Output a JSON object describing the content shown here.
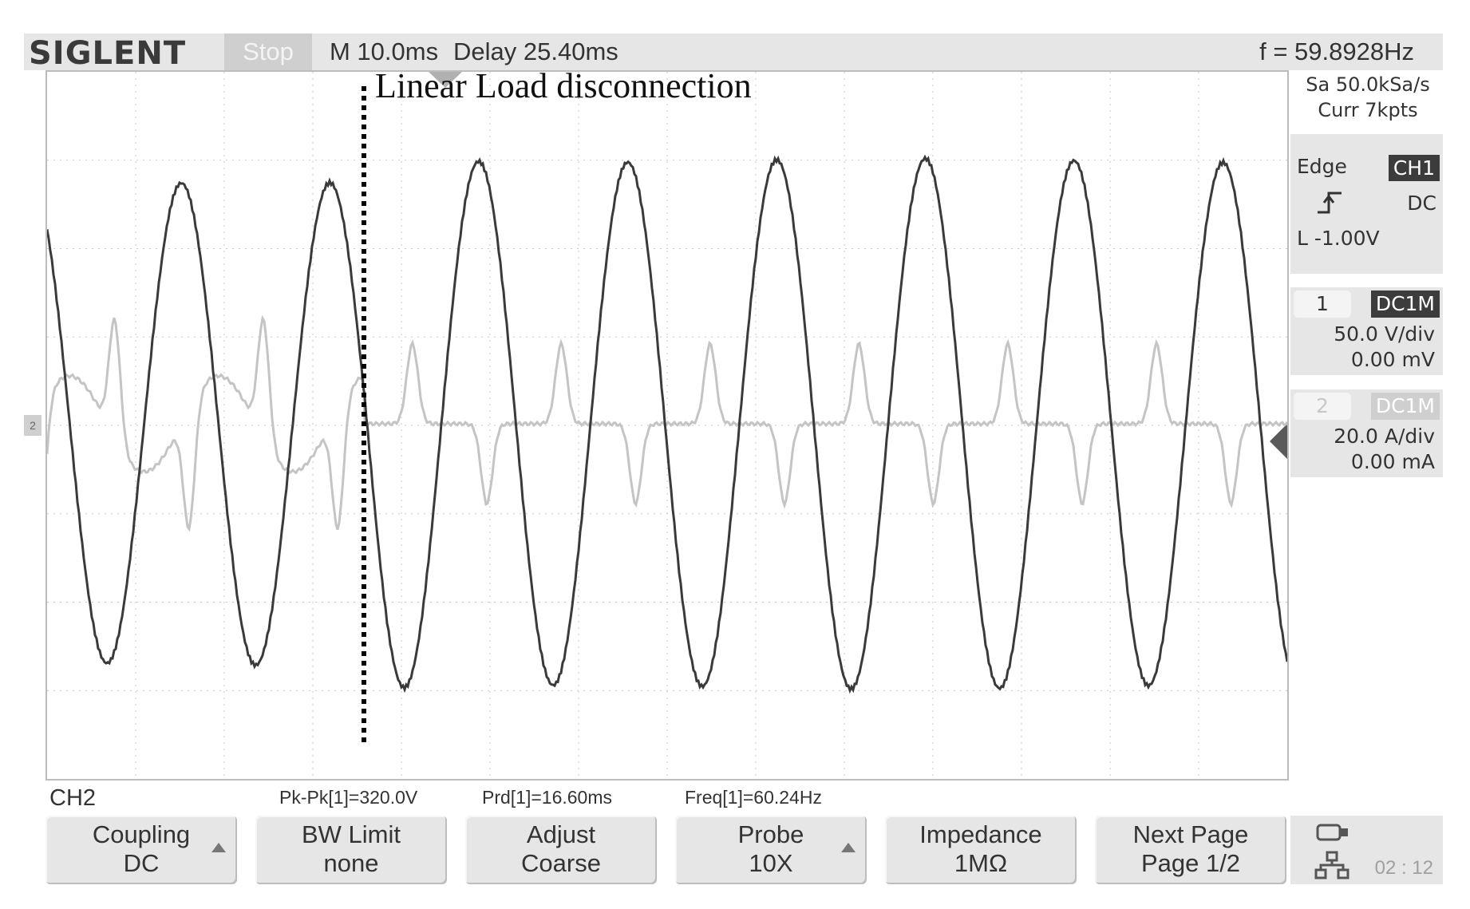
{
  "topbar": {
    "brand": "SIGLENT",
    "run_state": "Stop",
    "timebase": "M 10.0ms",
    "delay": "Delay 25.40ms",
    "frequency": "f = 59.8928Hz"
  },
  "annotation": "Linear Load disconnection",
  "acquisition": {
    "sample_rate": "Sa 50.0kSa/s",
    "memory": "Curr 7kpts"
  },
  "trigger": {
    "type": "Edge",
    "source": "CH1",
    "slope_icon": "rising-edge-icon",
    "coupling": "DC",
    "level": "L  -1.00V"
  },
  "channels": [
    {
      "number": "1",
      "coupling": "DC1M",
      "scale": "50.0 V/div",
      "offset": "0.00 mV"
    },
    {
      "number": "2",
      "coupling": "DC1M",
      "scale": "20.0 A/div",
      "offset": "0.00 mA"
    }
  ],
  "measurements": {
    "channel_label": "CH2",
    "pkpk": "Pk-Pk[1]=320.0V",
    "period": "Prd[1]=16.60ms",
    "frequency": "Freq[1]=60.24Hz"
  },
  "softkeys": [
    {
      "line1": "Coupling",
      "line2": "DC",
      "arrow": true
    },
    {
      "line1": "BW Limit",
      "line2": "none",
      "arrow": false
    },
    {
      "line1": "Adjust",
      "line2": "Coarse",
      "arrow": false
    },
    {
      "line1": "Probe",
      "line2": "10X",
      "arrow": true
    },
    {
      "line1": "Impedance",
      "line2": "1MΩ",
      "arrow": false
    },
    {
      "line1": "Next Page",
      "line2": "Page 1/2",
      "arrow": false
    }
  ],
  "status": {
    "clock": "02 : 12",
    "icons": [
      "usb-icon",
      "network-icon"
    ]
  },
  "colors": {
    "voltage_trace": "#3a3a3a",
    "current_trace": "#c4c4c4",
    "grid": "#c8c8c8",
    "panel_bg": "#e6e6e6"
  },
  "waveform": {
    "grid_divisions": {
      "x": 14,
      "y": 8
    },
    "event_time_ms": 25.4,
    "voltage_frequency_hz": 60,
    "voltage_peak_v": 160
  }
}
